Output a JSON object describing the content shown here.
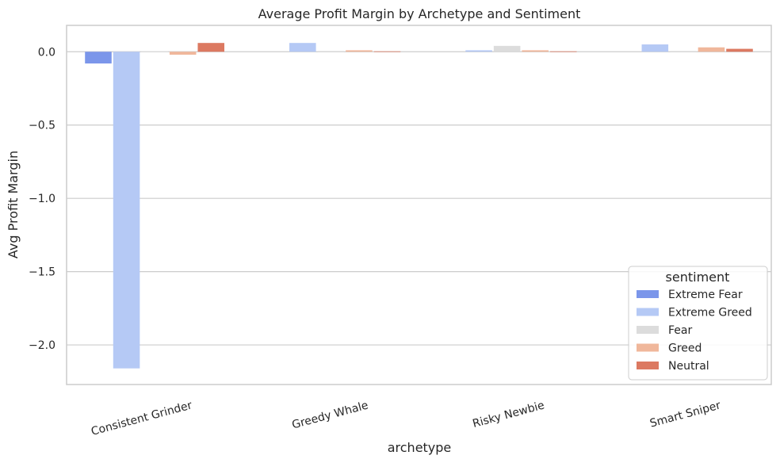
{
  "chart_data": {
    "type": "bar",
    "title": "Average Profit Margin by Archetype and Sentiment",
    "xlabel": "archetype",
    "ylabel": "Avg Profit Margin",
    "categories": [
      "Consistent Grinder",
      "Greedy Whale",
      "Risky Newbie",
      "Smart Sniper"
    ],
    "ylim": [
      -2.27,
      0.18
    ],
    "yticks": [
      0.0,
      -0.5,
      -1.0,
      -1.5,
      -2.0
    ],
    "ytick_labels": [
      "0.0",
      "−0.5",
      "−1.0",
      "−1.5",
      "−2.0"
    ],
    "grid": "horizontal",
    "legend": {
      "title": "sentiment",
      "placement": "lower-right"
    },
    "series": [
      {
        "name": "Extreme Fear",
        "color": "#7b96ea",
        "values": [
          -0.08,
          null,
          null,
          null
        ]
      },
      {
        "name": "Extreme Greed",
        "color": "#b5c9f5",
        "values": [
          -2.16,
          0.06,
          0.01,
          0.05
        ]
      },
      {
        "name": "Fear",
        "color": "#dcdcdc",
        "values": [
          0.003,
          0.005,
          0.04,
          0.005
        ]
      },
      {
        "name": "Greed",
        "color": "#f0b79b",
        "values": [
          -0.02,
          0.01,
          0.01,
          0.03
        ]
      },
      {
        "name": "Neutral",
        "color": "#dc7961",
        "values": [
          0.06,
          0.003,
          0.003,
          0.02
        ]
      }
    ]
  }
}
